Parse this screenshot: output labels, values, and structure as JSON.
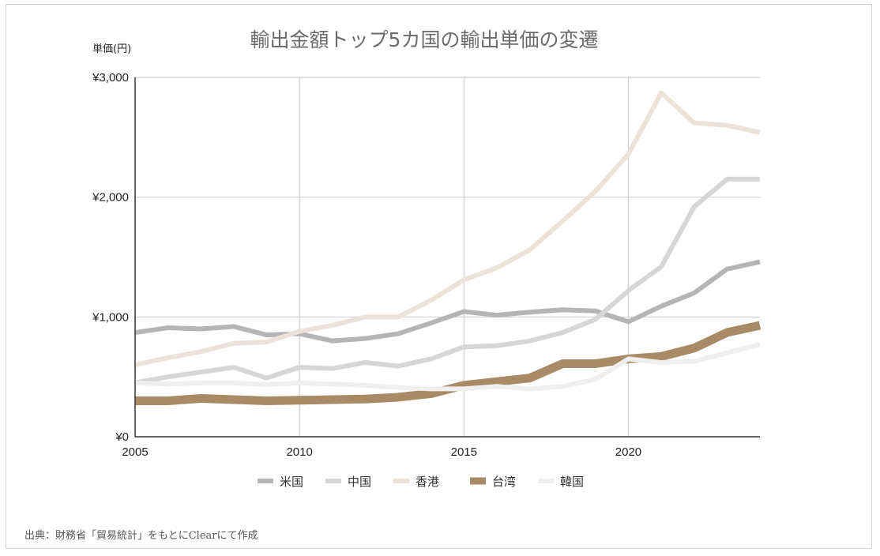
{
  "chart_data": {
    "type": "line",
    "title": "輸出金額トップ5カ国の輸出単価の変遷",
    "ylabel": "単価(円)",
    "xlabel": "",
    "x": [
      2005,
      2006,
      2007,
      2008,
      2009,
      2010,
      2011,
      2012,
      2013,
      2014,
      2015,
      2016,
      2017,
      2018,
      2019,
      2020,
      2021,
      2022,
      2023,
      2024
    ],
    "xticks": [
      2005,
      2010,
      2015,
      2020
    ],
    "xtick_labels": [
      "2005",
      "2010",
      "2015",
      "2020"
    ],
    "xlim": [
      2005,
      2024
    ],
    "ylim": [
      0,
      3000
    ],
    "yticks": [
      0,
      1000,
      2000,
      3000
    ],
    "ytick_labels": [
      "¥0",
      "¥1,000",
      "¥2,000",
      "¥3,000"
    ],
    "grid": true,
    "legend_position": "bottom",
    "series": [
      {
        "name": "米国",
        "color": "#b5b5b5",
        "width": 6,
        "values": [
          870,
          910,
          900,
          920,
          850,
          860,
          800,
          820,
          860,
          950,
          1045,
          1015,
          1040,
          1060,
          1050,
          960,
          1090,
          1200,
          1400,
          1460
        ]
      },
      {
        "name": "中国",
        "color": "#d6d6d6",
        "width": 6,
        "values": [
          450,
          500,
          540,
          580,
          490,
          580,
          570,
          620,
          590,
          650,
          750,
          760,
          800,
          870,
          980,
          1220,
          1420,
          1920,
          2150,
          2150
        ]
      },
      {
        "name": "香港",
        "color": "#ebe2d8",
        "width": 6,
        "values": [
          600,
          660,
          710,
          780,
          790,
          880,
          930,
          1000,
          1000,
          1140,
          1310,
          1410,
          1560,
          1800,
          2050,
          2360,
          2870,
          2620,
          2600,
          2540
        ]
      },
      {
        "name": "台湾",
        "color": "#a98a66",
        "width": 11,
        "values": [
          300,
          300,
          320,
          310,
          300,
          305,
          310,
          315,
          330,
          360,
          430,
          460,
          490,
          610,
          610,
          650,
          670,
          740,
          870,
          930
        ]
      },
      {
        "name": "韓国",
        "color": "#efefef",
        "width": 6,
        "values": [
          450,
          440,
          450,
          450,
          435,
          450,
          440,
          430,
          410,
          400,
          400,
          420,
          400,
          420,
          480,
          650,
          620,
          630,
          700,
          770
        ]
      }
    ]
  },
  "source_note": "出典：財務省「貿易統計」をもとにClearにて作成"
}
